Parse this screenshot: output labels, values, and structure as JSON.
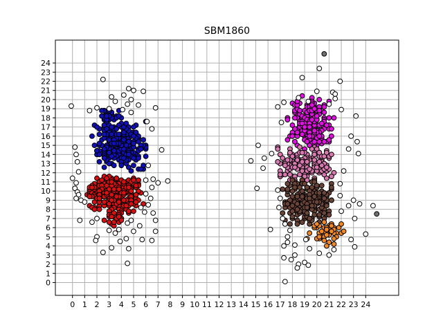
{
  "chart_data": {
    "type": "scatter",
    "title": "SBM1860",
    "xlabel": "",
    "ylabel": "",
    "xlim": [
      -1.4,
      26.7
    ],
    "ylim": [
      -1.4,
      26.5
    ],
    "grid": true,
    "x_ticks": [
      0,
      1,
      2,
      3,
      4,
      5,
      6,
      7,
      8,
      9,
      10,
      11,
      12,
      13,
      14,
      15,
      16,
      17,
      18,
      19,
      20,
      21,
      22,
      23,
      24
    ],
    "y_ticks": [
      0,
      1,
      2,
      3,
      4,
      5,
      6,
      7,
      8,
      9,
      10,
      11,
      12,
      13,
      14,
      15,
      16,
      17,
      18,
      19,
      20,
      21,
      22,
      23,
      24
    ],
    "colors": {
      "blue": "#1010b8",
      "red": "#d81010",
      "magenta": "#e010e0",
      "pink": "#d878b0",
      "brown": "#6b4438",
      "orange": "#f08828",
      "white": "#ffffff",
      "gray": "#707070",
      "edge": "#000000",
      "grid": "#b0b0b0"
    },
    "series": [
      {
        "color": "blue",
        "clusters": [
          {
            "x": [
              1.6,
              6.2
            ],
            "y": [
              12.0,
              18.0
            ],
            "cx": 3.8,
            "cy": 15.0,
            "n": 260
          },
          {
            "x": [
              2.0,
              4.2
            ],
            "y": [
              17.5,
              19.0
            ],
            "cx": 3.0,
            "cy": 18.0,
            "n": 30
          }
        ]
      },
      {
        "color": "red",
        "clusters": [
          {
            "x": [
              1.0,
              6.0
            ],
            "y": [
              7.5,
              12.0
            ],
            "cx": 3.5,
            "cy": 10.0,
            "n": 260
          },
          {
            "x": [
              2.5,
              4.5
            ],
            "y": [
              6.0,
              8.0
            ],
            "cx": 3.5,
            "cy": 7.2,
            "n": 30
          }
        ]
      },
      {
        "color": "magenta",
        "clusters": [
          {
            "x": [
              17.5,
              21.5
            ],
            "y": [
              14.5,
              20.5
            ],
            "cx": 19.5,
            "cy": 17.0,
            "n": 240
          }
        ]
      },
      {
        "color": "pink",
        "clusters": [
          {
            "x": [
              16.5,
              21.5
            ],
            "y": [
              11.0,
              15.0
            ],
            "cx": 19.0,
            "cy": 13.0,
            "n": 170
          }
        ]
      },
      {
        "color": "brown",
        "clusters": [
          {
            "x": [
              17.0,
              21.5
            ],
            "y": [
              6.0,
              11.5
            ],
            "cx": 19.0,
            "cy": 9.0,
            "n": 200
          }
        ]
      },
      {
        "color": "orange",
        "clusters": [
          {
            "x": [
              18.8,
              22.5
            ],
            "y": [
              3.8,
              7.0
            ],
            "cx": 20.8,
            "cy": 5.5,
            "n": 55
          }
        ]
      },
      {
        "color": "white",
        "points": [
          [
            2.5,
            22.2
          ],
          [
            4.6,
            21.2
          ],
          [
            5.0,
            21.0
          ],
          [
            5.8,
            20.9
          ],
          [
            3.2,
            20.3
          ],
          [
            4.2,
            20.5
          ],
          [
            4.8,
            20.0
          ],
          [
            3.5,
            19.8
          ],
          [
            4.5,
            19.5
          ],
          [
            5.4,
            19.4
          ],
          [
            6.8,
            19.1
          ],
          [
            1.4,
            18.8
          ],
          [
            2.0,
            19.1
          ],
          [
            3.0,
            19.0
          ],
          [
            4.1,
            18.9
          ],
          [
            4.8,
            18.6
          ],
          [
            -0.1,
            19.3
          ],
          [
            6.1,
            17.6
          ],
          [
            6.5,
            16.8
          ],
          [
            7.3,
            14.5
          ],
          [
            6.2,
            12.8
          ],
          [
            6.0,
            11.2
          ],
          [
            6.6,
            11.3
          ],
          [
            7.0,
            10.9
          ],
          [
            7.8,
            11.1
          ],
          [
            6.5,
            10.4
          ],
          [
            0.2,
            14.8
          ],
          [
            0.3,
            14.0
          ],
          [
            0.4,
            13.2
          ],
          [
            0.5,
            12.1
          ],
          [
            0.3,
            10.9
          ],
          [
            0.2,
            10.3
          ],
          [
            0.4,
            9.9
          ],
          [
            0.0,
            11.4
          ],
          [
            0.5,
            9.6
          ],
          [
            0.3,
            9.2
          ],
          [
            0.7,
            9.0
          ],
          [
            1.0,
            8.8
          ],
          [
            6.0,
            9.7
          ],
          [
            6.4,
            9.2
          ],
          [
            6.2,
            8.5
          ],
          [
            5.6,
            8.2
          ],
          [
            5.9,
            7.7
          ],
          [
            6.6,
            7.6
          ],
          [
            0.6,
            6.8
          ],
          [
            1.6,
            6.6
          ],
          [
            2.0,
            7.0
          ],
          [
            4.5,
            6.5
          ],
          [
            4.8,
            6.8
          ],
          [
            6.8,
            6.8
          ],
          [
            2.0,
            5.0
          ],
          [
            1.9,
            4.6
          ],
          [
            3.0,
            5.7
          ],
          [
            3.5,
            5.4
          ],
          [
            3.8,
            5.8
          ],
          [
            4.4,
            4.8
          ],
          [
            5.0,
            5.6
          ],
          [
            5.5,
            6.2
          ],
          [
            5.7,
            4.7
          ],
          [
            6.5,
            4.6
          ],
          [
            6.8,
            5.6
          ],
          [
            3.2,
            3.8
          ],
          [
            4.6,
            3.7
          ],
          [
            2.5,
            3.3
          ],
          [
            4.5,
            2.1
          ],
          [
            3.9,
            4.5
          ],
          [
            18.8,
            22.4
          ],
          [
            20.2,
            23.4
          ],
          [
            21.9,
            22.0
          ],
          [
            21.3,
            20.8
          ],
          [
            21.5,
            20.6
          ],
          [
            20.0,
            20.9
          ],
          [
            18.5,
            20.2
          ],
          [
            19.3,
            19.8
          ],
          [
            21.0,
            19.5
          ],
          [
            22.0,
            18.9
          ],
          [
            23.2,
            18.2
          ],
          [
            17.1,
            17.5
          ],
          [
            16.8,
            19.2
          ],
          [
            17.3,
            19.7
          ],
          [
            22.8,
            16.0
          ],
          [
            23.3,
            15.4
          ],
          [
            22.6,
            14.6
          ],
          [
            23.4,
            14.1
          ],
          [
            22.2,
            12.2
          ],
          [
            21.9,
            10.8
          ],
          [
            21.9,
            9.5
          ],
          [
            15.2,
            15.0
          ],
          [
            16.3,
            14.1
          ],
          [
            14.6,
            13.3
          ],
          [
            15.7,
            13.6
          ],
          [
            15.6,
            12.5
          ],
          [
            15.1,
            10.3
          ],
          [
            16.8,
            10.1
          ],
          [
            17.0,
            9.2
          ],
          [
            16.9,
            8.2
          ],
          [
            22.6,
            8.4
          ],
          [
            23.0,
            9.0
          ],
          [
            23.5,
            8.6
          ],
          [
            22.0,
            7.8
          ],
          [
            23.1,
            7.0
          ],
          [
            24.0,
            5.3
          ],
          [
            22.8,
            4.7
          ],
          [
            23.1,
            3.9
          ],
          [
            21.4,
            3.6
          ],
          [
            21.0,
            3.0
          ],
          [
            20.2,
            3.2
          ],
          [
            17.4,
            6.4
          ],
          [
            17.2,
            7.0
          ],
          [
            16.2,
            5.8
          ],
          [
            17.8,
            5.7
          ],
          [
            17.6,
            5.0
          ],
          [
            17.3,
            4.0
          ],
          [
            17.6,
            4.4
          ],
          [
            18.2,
            4.1
          ],
          [
            19.1,
            4.7
          ],
          [
            19.4,
            3.7
          ],
          [
            19.0,
            2.2
          ],
          [
            18.5,
            2.0
          ],
          [
            18.2,
            3.0
          ],
          [
            17.9,
            2.5
          ],
          [
            17.3,
            2.7
          ],
          [
            18.4,
            1.6
          ],
          [
            19.3,
            1.9
          ],
          [
            17.4,
            0.1
          ],
          [
            24.6,
            8.4
          ],
          [
            21.5,
            20.1
          ]
        ]
      },
      {
        "color": "gray",
        "points": [
          [
            20.6,
            25.0
          ],
          [
            24.9,
            7.5
          ]
        ]
      }
    ]
  }
}
